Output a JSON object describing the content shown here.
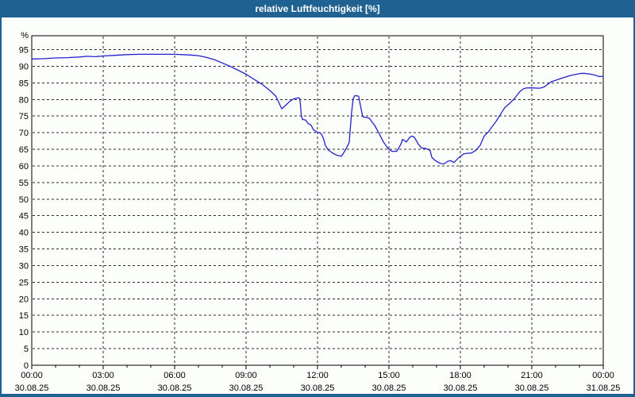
{
  "window": {
    "title": "relative Luftfeuchtigkeit [%]"
  },
  "colors": {
    "title_bar": "#1f6191",
    "title_text": "#ffffff",
    "window_border": "#1f6191",
    "background": "#fcfefc",
    "plot_background": "#fcfefc",
    "line": "#2323cd",
    "grid": "#2a2a2a",
    "axis": "#000000",
    "text": "#000000"
  },
  "chart_data": {
    "type": "line",
    "title": "relative Luftfeuchtigkeit [%]",
    "xlabel": "",
    "ylabel": "%",
    "grid": "dashed",
    "legend": "none",
    "xlim_hours": [
      0,
      24
    ],
    "ylim": [
      0,
      99.2
    ],
    "y_ticks": [
      5,
      10,
      15,
      20,
      25,
      30,
      35,
      40,
      45,
      50,
      55,
      60,
      65,
      70,
      75,
      80,
      85,
      90,
      95
    ],
    "y_axis_zero_label": "0",
    "x_major_ticks_hours": [
      0,
      3,
      6,
      9,
      12,
      15,
      18,
      21,
      24
    ],
    "x_minor_tick_interval_hours": 1,
    "x_tick_labels": [
      {
        "time": "00:00",
        "date": "30.08.25"
      },
      {
        "time": "03:00",
        "date": "30.08.25"
      },
      {
        "time": "06:00",
        "date": "30.08.25"
      },
      {
        "time": "09:00",
        "date": "30.08.25"
      },
      {
        "time": "12:00",
        "date": "30.08.25"
      },
      {
        "time": "15:00",
        "date": "30.08.25"
      },
      {
        "time": "18:00",
        "date": "30.08.25"
      },
      {
        "time": "21:00",
        "date": "30.08.25"
      },
      {
        "time": "00:00",
        "date": "31.08.25"
      }
    ],
    "series": [
      {
        "name": "relative Luftfeuchtigkeit",
        "unit": "%",
        "points_hours_value": [
          [
            0,
            92.2
          ],
          [
            0.5,
            92.3
          ],
          [
            1,
            92.5
          ],
          [
            1.5,
            92.6
          ],
          [
            2,
            92.8
          ],
          [
            2.33,
            93.0
          ],
          [
            2.67,
            92.9
          ],
          [
            3,
            93.1
          ],
          [
            3.5,
            93.3
          ],
          [
            4,
            93.5
          ],
          [
            4.5,
            93.6
          ],
          [
            5,
            93.6
          ],
          [
            5.5,
            93.6
          ],
          [
            6,
            93.6
          ],
          [
            6.33,
            93.5
          ],
          [
            6.67,
            93.4
          ],
          [
            7,
            93.2
          ],
          [
            7.33,
            92.7
          ],
          [
            7.67,
            92.0
          ],
          [
            8,
            91.0
          ],
          [
            8.33,
            90.0
          ],
          [
            8.67,
            88.8
          ],
          [
            9,
            87.6
          ],
          [
            9.33,
            86.1
          ],
          [
            9.67,
            84.6
          ],
          [
            10,
            82.7
          ],
          [
            10.25,
            81.0
          ],
          [
            10.5,
            77.2
          ],
          [
            10.67,
            78.3
          ],
          [
            10.83,
            79.4
          ],
          [
            11,
            80.2
          ],
          [
            11.17,
            80.5
          ],
          [
            11.25,
            80.4
          ],
          [
            11.28,
            78.7
          ],
          [
            11.32,
            75.2
          ],
          [
            11.37,
            74.0
          ],
          [
            11.5,
            73.8
          ],
          [
            11.6,
            72.8
          ],
          [
            11.73,
            72.3
          ],
          [
            11.83,
            70.9
          ],
          [
            12,
            70.1
          ],
          [
            12.1,
            70.0
          ],
          [
            12.17,
            69.5
          ],
          [
            12.25,
            68.3
          ],
          [
            12.33,
            66.2
          ],
          [
            12.45,
            64.8
          ],
          [
            12.57,
            64.2
          ],
          [
            12.7,
            63.6
          ],
          [
            12.83,
            63.2
          ],
          [
            13,
            62.9
          ],
          [
            13.13,
            64.3
          ],
          [
            13.23,
            65.6
          ],
          [
            13.33,
            67.0
          ],
          [
            13.43,
            76.0
          ],
          [
            13.5,
            80.3
          ],
          [
            13.57,
            81.2
          ],
          [
            13.73,
            81.0
          ],
          [
            13.8,
            78.3
          ],
          [
            13.9,
            74.8
          ],
          [
            14.17,
            74.4
          ],
          [
            14.4,
            72.2
          ],
          [
            14.6,
            69.6
          ],
          [
            14.77,
            67.2
          ],
          [
            14.93,
            65.6
          ],
          [
            15,
            65.0
          ],
          [
            15.13,
            64.4
          ],
          [
            15.33,
            64.4
          ],
          [
            15.5,
            66.5
          ],
          [
            15.57,
            68.0
          ],
          [
            15.73,
            67.2
          ],
          [
            15.87,
            68.6
          ],
          [
            15.97,
            69.0
          ],
          [
            16.07,
            68.6
          ],
          [
            16.23,
            66.6
          ],
          [
            16.37,
            65.4
          ],
          [
            16.57,
            65.2
          ],
          [
            16.73,
            64.6
          ],
          [
            16.8,
            62.6
          ],
          [
            16.93,
            61.7
          ],
          [
            17.07,
            61.1
          ],
          [
            17.17,
            60.7
          ],
          [
            17.33,
            60.7
          ],
          [
            17.47,
            61.4
          ],
          [
            17.6,
            61.6
          ],
          [
            17.73,
            61.0
          ],
          [
            17.9,
            62.3
          ],
          [
            18,
            62.8
          ],
          [
            18.13,
            63.6
          ],
          [
            18.27,
            63.8
          ],
          [
            18.47,
            63.9
          ],
          [
            18.67,
            64.8
          ],
          [
            18.83,
            66.2
          ],
          [
            19,
            69.0
          ],
          [
            19.17,
            70.2
          ],
          [
            19.33,
            71.8
          ],
          [
            19.5,
            73.4
          ],
          [
            19.67,
            75.4
          ],
          [
            19.75,
            76.3
          ],
          [
            19.87,
            77.6
          ],
          [
            20.07,
            78.8
          ],
          [
            20.27,
            80.3
          ],
          [
            20.4,
            81.5
          ],
          [
            20.53,
            82.6
          ],
          [
            20.67,
            83.3
          ],
          [
            20.8,
            83.5
          ],
          [
            21,
            83.5
          ],
          [
            21.33,
            83.4
          ],
          [
            21.5,
            83.7
          ],
          [
            21.67,
            84.6
          ],
          [
            21.83,
            85.4
          ],
          [
            22,
            85.8
          ],
          [
            22.33,
            86.6
          ],
          [
            22.67,
            87.3
          ],
          [
            23,
            87.8
          ],
          [
            23.17,
            87.9
          ],
          [
            23.42,
            87.7
          ],
          [
            23.67,
            87.3
          ],
          [
            23.83,
            86.9
          ],
          [
            24,
            87.0
          ]
        ]
      }
    ]
  }
}
